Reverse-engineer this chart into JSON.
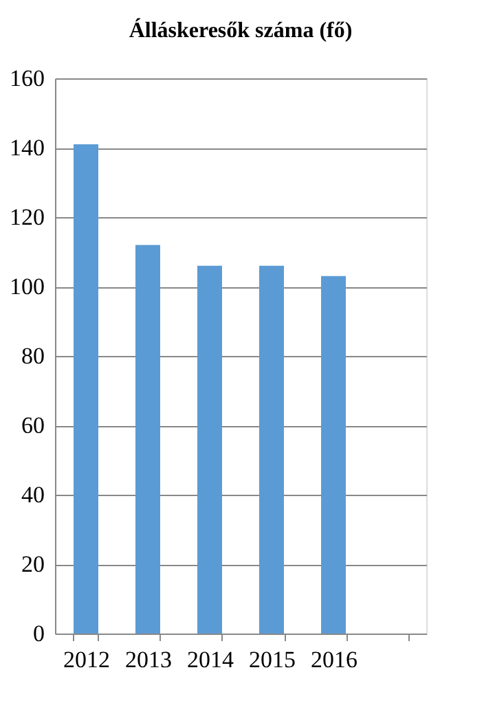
{
  "chart_data": {
    "type": "bar",
    "title": "Álláskeresők száma (fő)",
    "categories": [
      "2012",
      "2013",
      "2014",
      "2015",
      "2016",
      null
    ],
    "values": [
      141,
      112,
      106,
      106,
      103,
      null
    ],
    "color": "#5b9bd5",
    "ylim": [
      0,
      160
    ],
    "yticks": [
      0,
      20,
      40,
      60,
      80,
      100,
      120,
      140,
      160
    ],
    "grid": "y"
  }
}
